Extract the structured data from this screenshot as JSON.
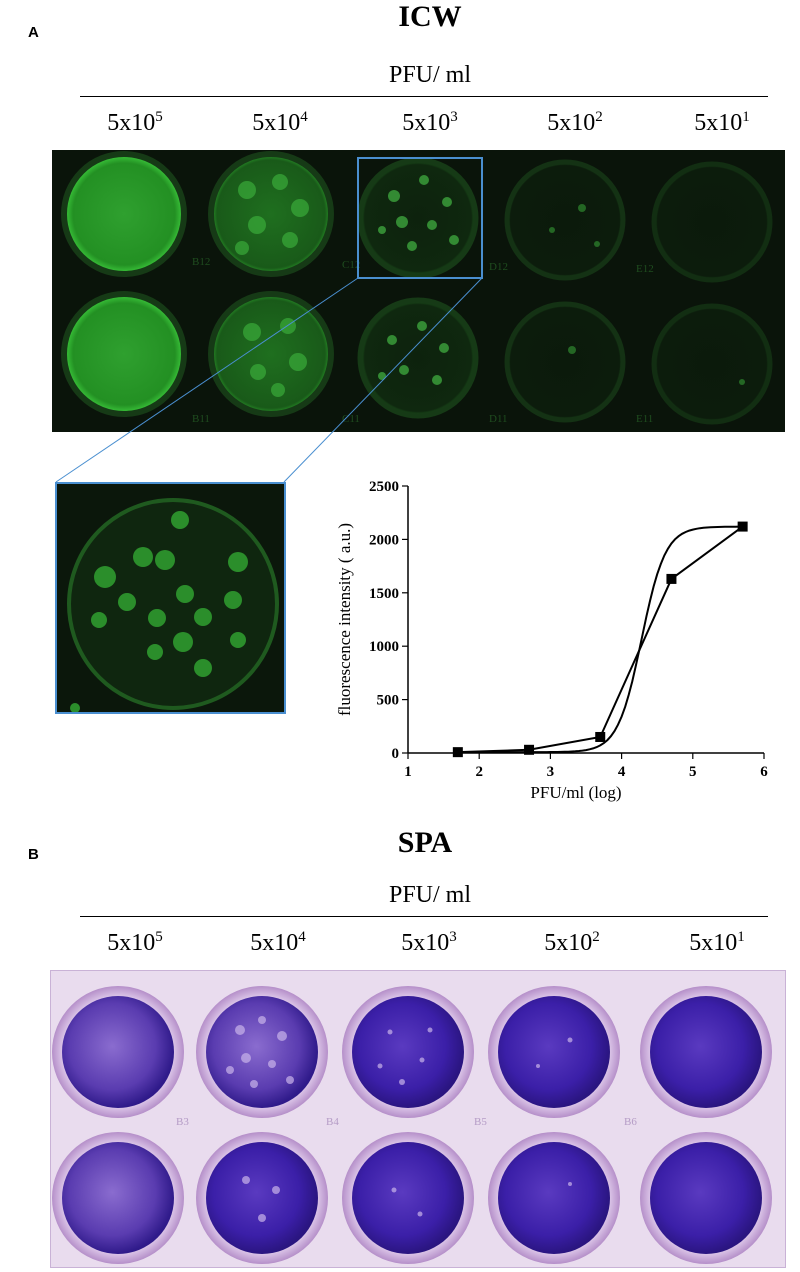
{
  "panel_a": {
    "letter": "A",
    "heading": "ICW",
    "unit_label": "PFU/ ml",
    "concentrations": [
      {
        "base": "5x10",
        "exp": "5"
      },
      {
        "base": "5x10",
        "exp": "4"
      },
      {
        "base": "5x10",
        "exp": "3"
      },
      {
        "base": "5x10",
        "exp": "2"
      },
      {
        "base": "5x10",
        "exp": "1"
      }
    ],
    "well_labels": [
      "B12",
      "C12",
      "D12",
      "E12",
      "B11",
      "C11",
      "D11",
      "E11"
    ],
    "colors": {
      "fluorescence": "#3fd63f",
      "background": "#0a140a",
      "zoom_frame": "#4a8fd0"
    }
  },
  "panel_b": {
    "letter": "B",
    "heading": "SPA",
    "unit_label": "PFU/ ml",
    "concentrations": [
      {
        "base": "5x10",
        "exp": "5"
      },
      {
        "base": "5x10",
        "exp": "4"
      },
      {
        "base": "5x10",
        "exp": "3"
      },
      {
        "base": "5x10",
        "exp": "2"
      },
      {
        "base": "5x10",
        "exp": "1"
      }
    ],
    "well_labels": [
      "B3",
      "B4",
      "B5",
      "B6"
    ],
    "colors": {
      "stain": "#3b1fa8",
      "plate": "#e9dcee"
    }
  },
  "chart_data": {
    "type": "line",
    "xlabel": "PFU/ml (log)",
    "ylabel": "fluorescence intensity ( a.u.)",
    "xlim": [
      1,
      6
    ],
    "ylim": [
      0,
      2500
    ],
    "xticks": [
      1,
      2,
      3,
      4,
      5,
      6
    ],
    "yticks": [
      0,
      500,
      1000,
      1500,
      2000,
      2500
    ],
    "series": [
      {
        "x": [
          1.7,
          2.7,
          3.7,
          4.7,
          5.7
        ],
        "y": [
          8,
          30,
          150,
          1630,
          2120
        ]
      }
    ],
    "fit": "sigmoidal curve through the points",
    "grid": false,
    "marker": "square"
  }
}
